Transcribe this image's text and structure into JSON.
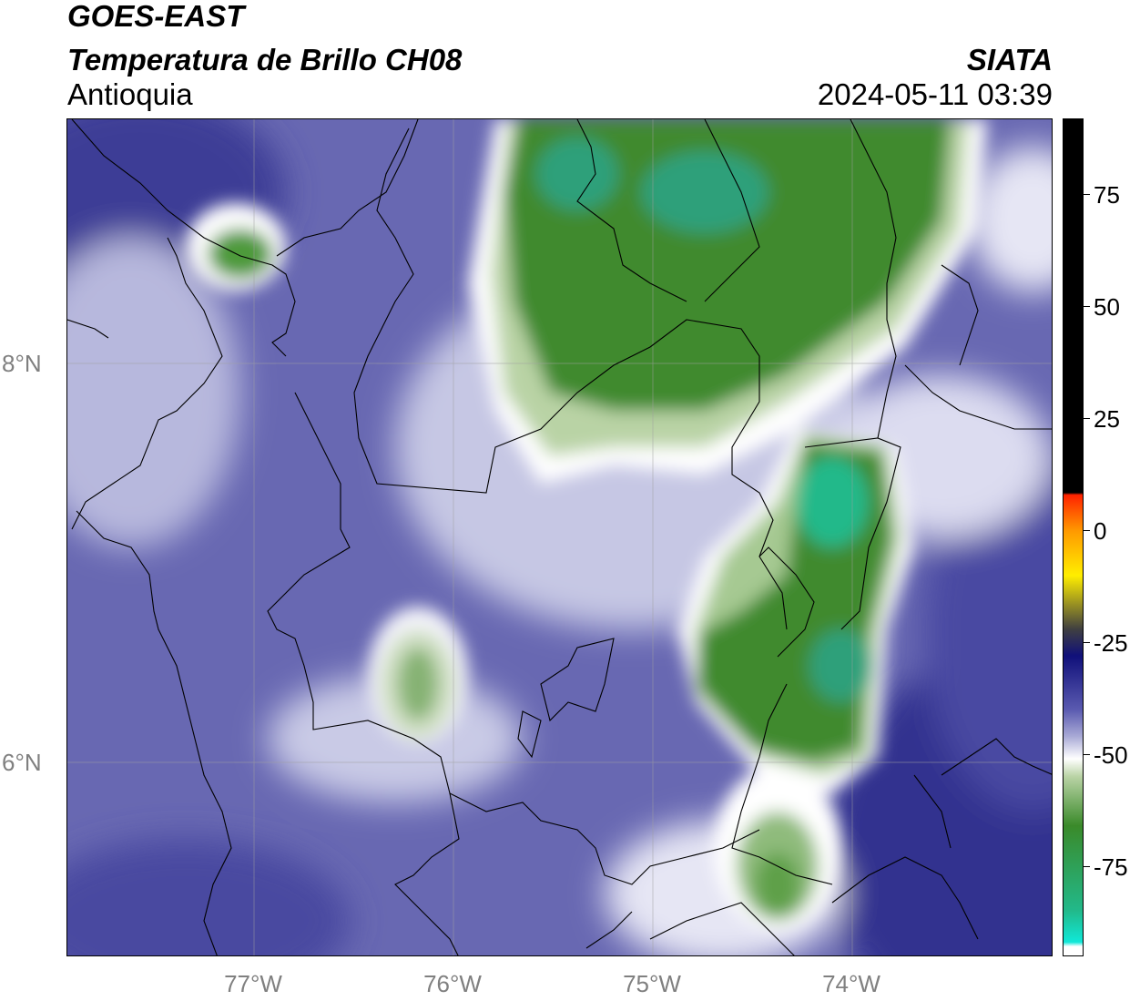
{
  "header": {
    "satellite": "GOES-EAST",
    "product": "Temperatura de Brillo CH08",
    "region": "Antioquia",
    "organization": "SIATA",
    "datetime": "2024-05-11 03:39"
  },
  "axes": {
    "latitude_labels": [
      "8°N",
      "6°N"
    ],
    "longitude_labels": [
      "77°W",
      "76°W",
      "75°W",
      "74°W"
    ]
  },
  "colorbar": {
    "tick_labels": [
      "75",
      "50",
      "25",
      "0",
      "-25",
      "-50",
      "-75"
    ],
    "tick_values": [
      75,
      50,
      25,
      0,
      -25,
      -50,
      -75
    ],
    "range": [
      -95,
      92
    ],
    "colors": {
      "warm_black": "#000000",
      "red": "#ff2200",
      "orange": "#ff9900",
      "yellow": "#ffee00",
      "dark_navy": "#10107a",
      "blue_violet": "#5a5ab0",
      "lavender": "#a9aad6",
      "white": "#ffffff",
      "light_green": "#b9d3a5",
      "green": "#3a8a2a",
      "teal": "#22b98a",
      "cyan": "#10e8d8"
    }
  },
  "map": {
    "background_color": "#6868b2"
  }
}
